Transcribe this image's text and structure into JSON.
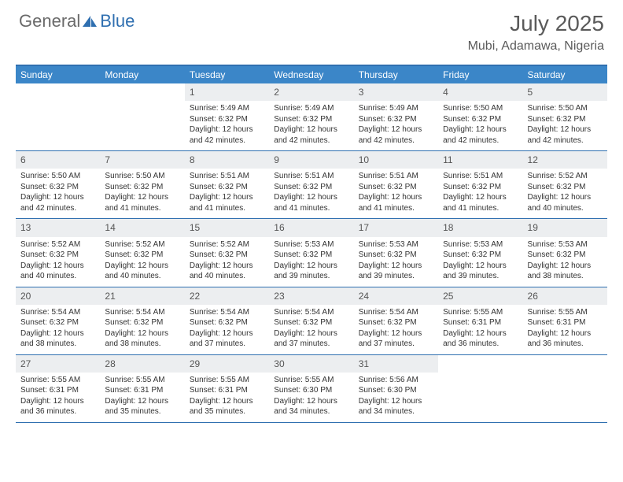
{
  "brand": {
    "word1": "General",
    "word2": "Blue"
  },
  "title": "July 2025",
  "location": "Mubi, Adamawa, Nigeria",
  "colors": {
    "header_bar": "#3b86c8",
    "rule": "#2f6fb0",
    "daynum_bg": "#eceef0",
    "text": "#333333",
    "muted": "#5a5a5a",
    "white": "#ffffff"
  },
  "weekdays": [
    "Sunday",
    "Monday",
    "Tuesday",
    "Wednesday",
    "Thursday",
    "Friday",
    "Saturday"
  ],
  "weeks": [
    [
      null,
      null,
      {
        "n": "1",
        "sr": "5:49 AM",
        "ss": "6:32 PM",
        "dl": "12 hours and 42 minutes."
      },
      {
        "n": "2",
        "sr": "5:49 AM",
        "ss": "6:32 PM",
        "dl": "12 hours and 42 minutes."
      },
      {
        "n": "3",
        "sr": "5:49 AM",
        "ss": "6:32 PM",
        "dl": "12 hours and 42 minutes."
      },
      {
        "n": "4",
        "sr": "5:50 AM",
        "ss": "6:32 PM",
        "dl": "12 hours and 42 minutes."
      },
      {
        "n": "5",
        "sr": "5:50 AM",
        "ss": "6:32 PM",
        "dl": "12 hours and 42 minutes."
      }
    ],
    [
      {
        "n": "6",
        "sr": "5:50 AM",
        "ss": "6:32 PM",
        "dl": "12 hours and 42 minutes."
      },
      {
        "n": "7",
        "sr": "5:50 AM",
        "ss": "6:32 PM",
        "dl": "12 hours and 41 minutes."
      },
      {
        "n": "8",
        "sr": "5:51 AM",
        "ss": "6:32 PM",
        "dl": "12 hours and 41 minutes."
      },
      {
        "n": "9",
        "sr": "5:51 AM",
        "ss": "6:32 PM",
        "dl": "12 hours and 41 minutes."
      },
      {
        "n": "10",
        "sr": "5:51 AM",
        "ss": "6:32 PM",
        "dl": "12 hours and 41 minutes."
      },
      {
        "n": "11",
        "sr": "5:51 AM",
        "ss": "6:32 PM",
        "dl": "12 hours and 41 minutes."
      },
      {
        "n": "12",
        "sr": "5:52 AM",
        "ss": "6:32 PM",
        "dl": "12 hours and 40 minutes."
      }
    ],
    [
      {
        "n": "13",
        "sr": "5:52 AM",
        "ss": "6:32 PM",
        "dl": "12 hours and 40 minutes."
      },
      {
        "n": "14",
        "sr": "5:52 AM",
        "ss": "6:32 PM",
        "dl": "12 hours and 40 minutes."
      },
      {
        "n": "15",
        "sr": "5:52 AM",
        "ss": "6:32 PM",
        "dl": "12 hours and 40 minutes."
      },
      {
        "n": "16",
        "sr": "5:53 AM",
        "ss": "6:32 PM",
        "dl": "12 hours and 39 minutes."
      },
      {
        "n": "17",
        "sr": "5:53 AM",
        "ss": "6:32 PM",
        "dl": "12 hours and 39 minutes."
      },
      {
        "n": "18",
        "sr": "5:53 AM",
        "ss": "6:32 PM",
        "dl": "12 hours and 39 minutes."
      },
      {
        "n": "19",
        "sr": "5:53 AM",
        "ss": "6:32 PM",
        "dl": "12 hours and 38 minutes."
      }
    ],
    [
      {
        "n": "20",
        "sr": "5:54 AM",
        "ss": "6:32 PM",
        "dl": "12 hours and 38 minutes."
      },
      {
        "n": "21",
        "sr": "5:54 AM",
        "ss": "6:32 PM",
        "dl": "12 hours and 38 minutes."
      },
      {
        "n": "22",
        "sr": "5:54 AM",
        "ss": "6:32 PM",
        "dl": "12 hours and 37 minutes."
      },
      {
        "n": "23",
        "sr": "5:54 AM",
        "ss": "6:32 PM",
        "dl": "12 hours and 37 minutes."
      },
      {
        "n": "24",
        "sr": "5:54 AM",
        "ss": "6:32 PM",
        "dl": "12 hours and 37 minutes."
      },
      {
        "n": "25",
        "sr": "5:55 AM",
        "ss": "6:31 PM",
        "dl": "12 hours and 36 minutes."
      },
      {
        "n": "26",
        "sr": "5:55 AM",
        "ss": "6:31 PM",
        "dl": "12 hours and 36 minutes."
      }
    ],
    [
      {
        "n": "27",
        "sr": "5:55 AM",
        "ss": "6:31 PM",
        "dl": "12 hours and 36 minutes."
      },
      {
        "n": "28",
        "sr": "5:55 AM",
        "ss": "6:31 PM",
        "dl": "12 hours and 35 minutes."
      },
      {
        "n": "29",
        "sr": "5:55 AM",
        "ss": "6:31 PM",
        "dl": "12 hours and 35 minutes."
      },
      {
        "n": "30",
        "sr": "5:55 AM",
        "ss": "6:30 PM",
        "dl": "12 hours and 34 minutes."
      },
      {
        "n": "31",
        "sr": "5:56 AM",
        "ss": "6:30 PM",
        "dl": "12 hours and 34 minutes."
      },
      null,
      null
    ]
  ],
  "labels": {
    "sunrise": "Sunrise:",
    "sunset": "Sunset:",
    "daylight": "Daylight:"
  }
}
